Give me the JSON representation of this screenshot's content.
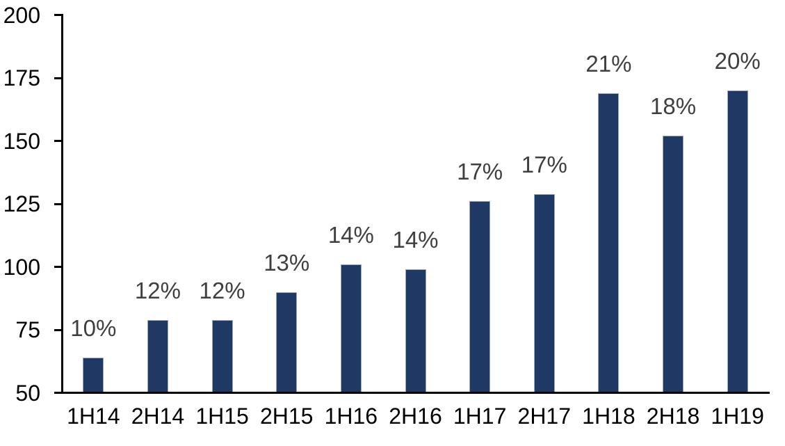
{
  "chart_data": {
    "type": "bar",
    "title": "",
    "xlabel": "",
    "ylabel": "",
    "categories": [
      "1H14",
      "2H14",
      "1H15",
      "2H15",
      "1H16",
      "2H16",
      "1H17",
      "2H17",
      "1H18",
      "2H18",
      "1H19"
    ],
    "values": [
      64,
      79,
      79,
      90,
      101,
      99,
      126,
      129,
      169,
      152,
      170
    ],
    "bar_labels": [
      "10%",
      "12%",
      "12%",
      "13%",
      "14%",
      "14%",
      "17%",
      "17%",
      "21%",
      "18%",
      "20%"
    ],
    "yticks": [
      50,
      75,
      100,
      125,
      150,
      175,
      200
    ],
    "ylim": [
      50,
      200
    ],
    "grid": false,
    "legend_position": "none",
    "colors": {
      "bar_fill": "#1F3864",
      "bar_border": "#96A6C3",
      "data_label": "#3F3F3F",
      "axis_text": "#000000",
      "axis_line": "#000000",
      "background": "#FFFFFF"
    }
  }
}
